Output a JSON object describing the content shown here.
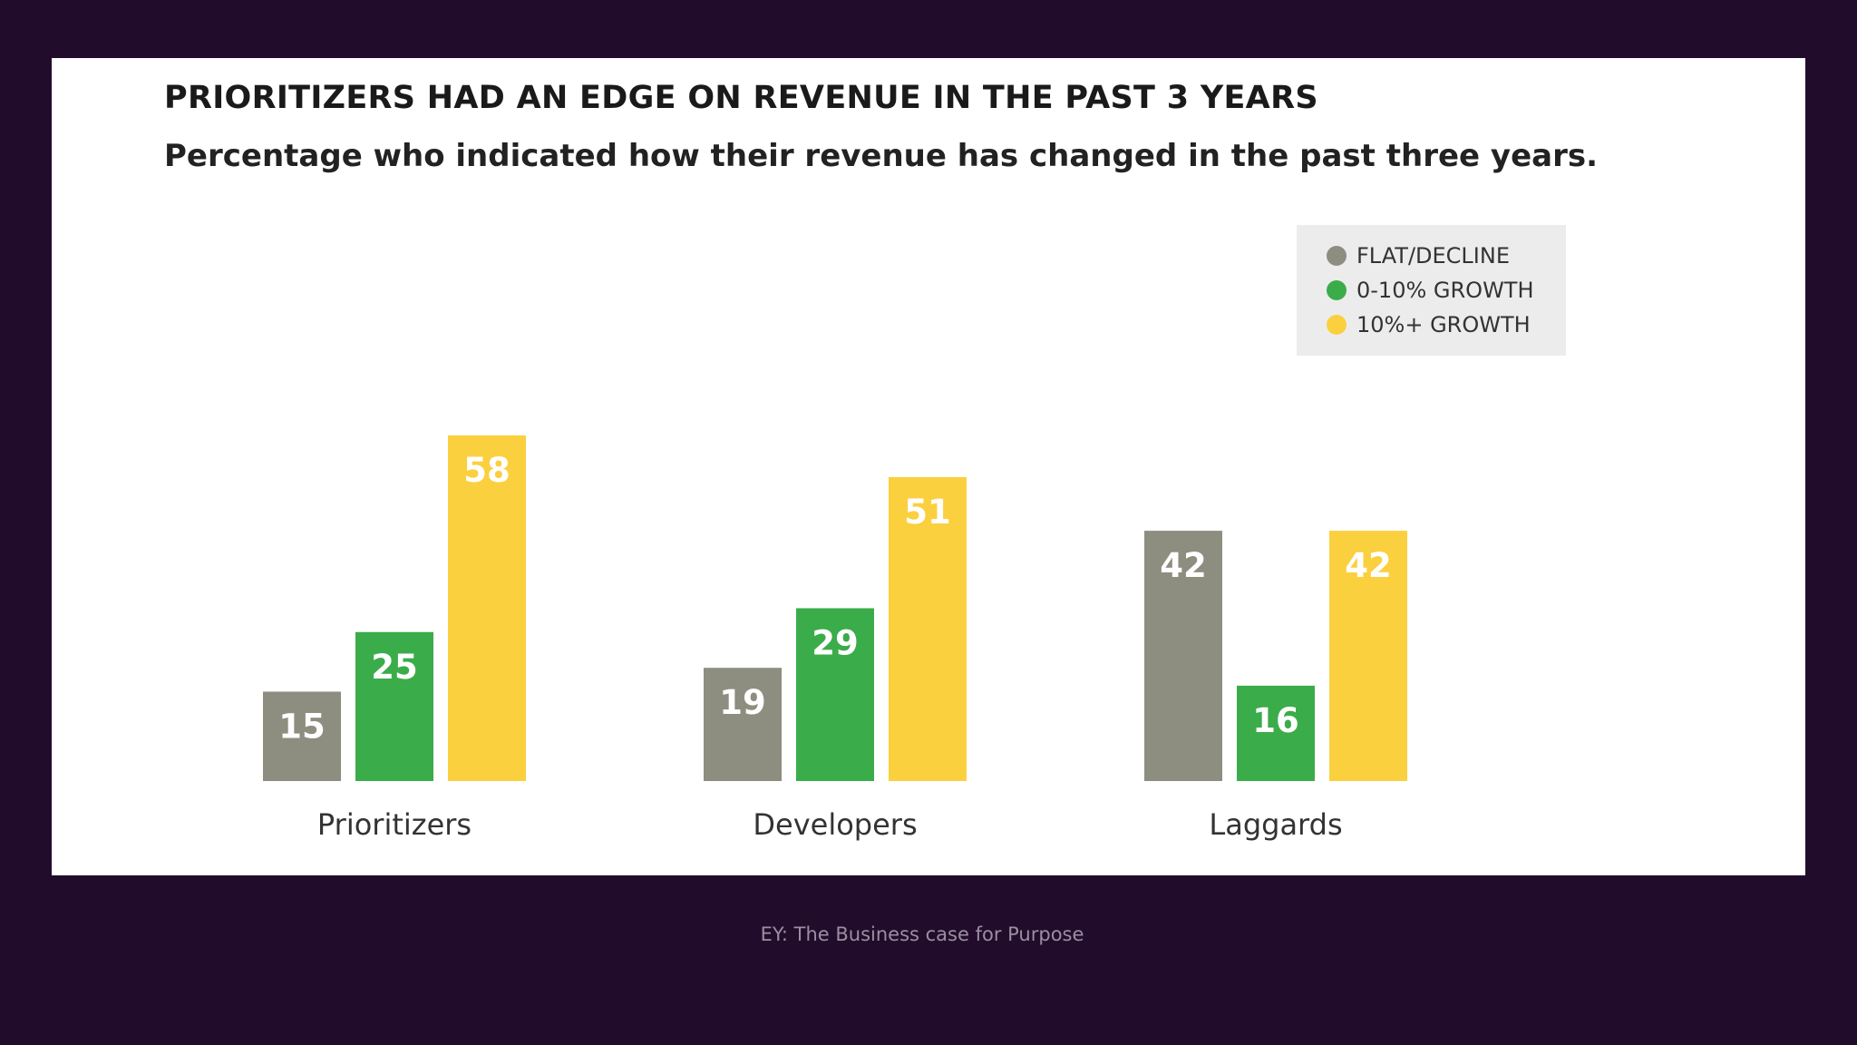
{
  "chart_data": {
    "type": "bar",
    "title": "PRIORITIZERS HAD AN EDGE ON REVENUE IN THE PAST 3 YEARS",
    "subtitle": "Percentage who indicated how their revenue has changed in the past three years.",
    "categories": [
      "Prioritizers",
      "Developers",
      "Laggards"
    ],
    "series": [
      {
        "name": "FLAT/DECLINE",
        "color": "#8e8e80",
        "values": [
          15,
          19,
          42
        ]
      },
      {
        "name": "0-10% GROWTH",
        "color": "#3bac4a",
        "values": [
          25,
          29,
          16
        ]
      },
      {
        "name": "10%+ GROWTH",
        "color": "#fbd03f",
        "values": [
          58,
          51,
          42
        ]
      }
    ],
    "ylim": [
      0,
      58
    ],
    "data_labels": true,
    "legend_position": "top-right",
    "grid": false,
    "axes_visible": false
  },
  "caption": "EY: The Business case for Purpose"
}
